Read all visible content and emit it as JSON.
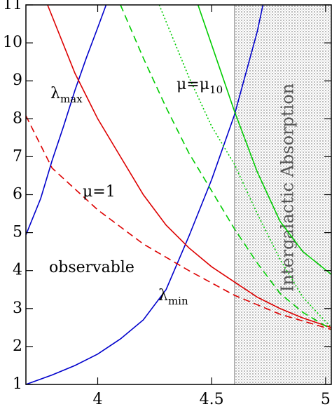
{
  "chart_data": {
    "type": "line",
    "xlim": [
      3.685,
      5.025
    ],
    "ylim": [
      1,
      11
    ],
    "xticks": [
      4,
      4.5,
      5
    ],
    "yticks": [
      1,
      2,
      3,
      4,
      5,
      6,
      7,
      8,
      9,
      10,
      11
    ],
    "shaded_region": {
      "x_from": 4.6,
      "label": "Intergalactic Absorption"
    },
    "annotations": [
      {
        "text": "λ",
        "sub": "max"
      },
      {
        "text": "μ=1"
      },
      {
        "text": "observable"
      },
      {
        "text": "λ",
        "sub": "min"
      },
      {
        "text": "μ=μ",
        "sub": "10"
      }
    ],
    "series": [
      {
        "color": "#0000cc",
        "dash": "solid",
        "x": [
          3.685,
          3.75,
          3.8,
          3.85,
          3.9,
          3.95,
          4.0,
          4.037
        ],
        "values": [
          4.94,
          5.9,
          6.9,
          7.8,
          8.75,
          9.6,
          10.4,
          11
        ]
      },
      {
        "color": "#0000cc",
        "dash": "solid",
        "x": [
          3.685,
          3.8,
          3.9,
          4.0,
          4.1,
          4.2,
          4.3,
          4.4,
          4.5,
          4.6,
          4.7,
          4.725
        ],
        "values": [
          1,
          1.25,
          1.5,
          1.8,
          2.2,
          2.7,
          3.5,
          4.9,
          6.4,
          8.1,
          10.3,
          11
        ]
      },
      {
        "color": "#dd0000",
        "dash": "solid",
        "x": [
          3.78,
          3.9,
          4.0,
          4.1,
          4.2,
          4.3,
          4.4,
          4.5,
          4.6,
          4.7,
          4.8,
          4.9,
          5.025
        ],
        "values": [
          11,
          9.2,
          8.0,
          7.0,
          6.0,
          5.2,
          4.6,
          4.1,
          3.7,
          3.3,
          3.0,
          2.75,
          2.5
        ]
      },
      {
        "color": "#dd0000",
        "dash": "dashed",
        "x": [
          3.685,
          3.8,
          4.0,
          4.2,
          4.4,
          4.6,
          4.8,
          5.025
        ],
        "values": [
          8.08,
          6.7,
          5.6,
          4.7,
          4.0,
          3.35,
          2.85,
          2.45
        ]
      },
      {
        "color": "#00cc00",
        "dash": "dashed",
        "x": [
          4.1,
          4.2,
          4.3,
          4.4,
          4.5,
          4.6,
          4.7,
          4.8,
          4.9,
          5.025
        ],
        "values": [
          11,
          9.6,
          8.3,
          7.1,
          6.1,
          5.1,
          4.2,
          3.4,
          2.9,
          2.45
        ]
      },
      {
        "color": "#00cc00",
        "dash": "dotted",
        "x": [
          4.27,
          4.4,
          4.5,
          4.6,
          4.7,
          4.8,
          4.9,
          5.025
        ],
        "values": [
          11,
          9.1,
          7.8,
          6.8,
          5.5,
          4.3,
          3.3,
          2.5
        ]
      },
      {
        "color": "#00cc00",
        "dash": "solid",
        "x": [
          4.44,
          4.6,
          4.7,
          4.8,
          4.9,
          5.025
        ],
        "values": [
          11,
          8.2,
          6.6,
          5.3,
          4.5,
          3.9
        ]
      }
    ]
  }
}
